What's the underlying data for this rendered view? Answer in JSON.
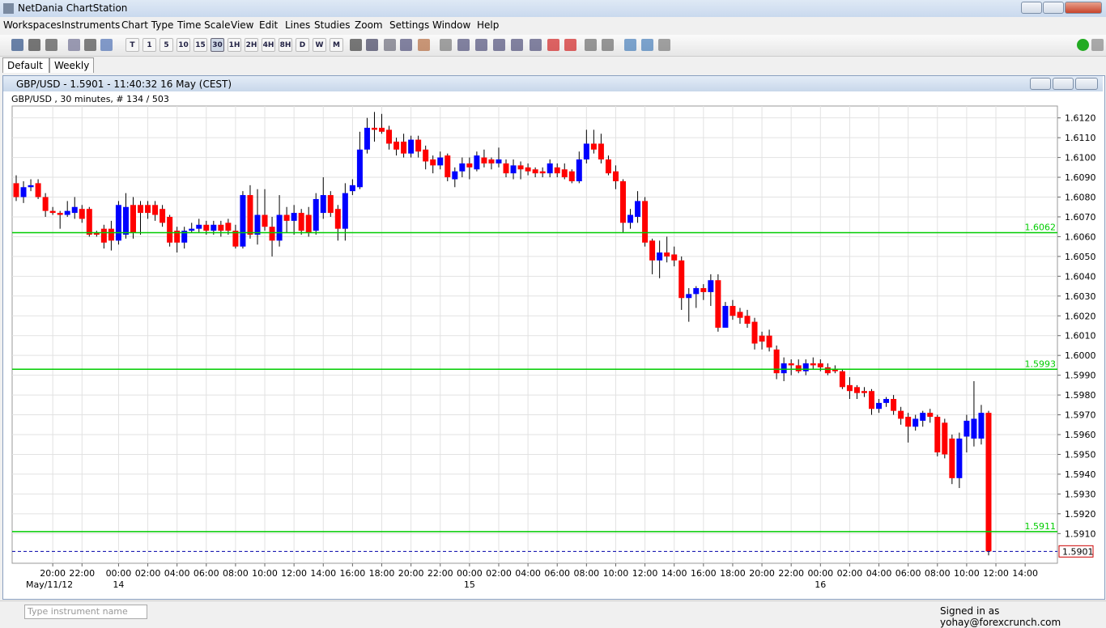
{
  "window": {
    "title": "NetDania ChartStation"
  },
  "menu": [
    "Workspaces",
    "Instruments",
    "Chart Type",
    "Time Scale",
    "View",
    "Edit",
    "Lines",
    "Studies",
    "Zoom",
    "Settings",
    "Window",
    "Help"
  ],
  "toolbar": {
    "timescales": [
      "T",
      "1",
      "5",
      "10",
      "15",
      "30",
      "1H",
      "2H",
      "4H",
      "8H",
      "D",
      "W",
      "M"
    ],
    "active": "30"
  },
  "tabs": [
    "Default",
    "Weekly"
  ],
  "chart_window": {
    "title": "GBP/USD - 1.5901 - 11:40:32  16 May (CEST)",
    "info": "GBP/USD , 30 minutes, # 134 / 503"
  },
  "chart": {
    "type": "candlestick",
    "up_color": "#0000ff",
    "down_color": "#ff0000",
    "grid": true,
    "ohlc": [
      [
        1.6087,
        1.6091,
        1.6078,
        1.608
      ],
      [
        1.608,
        1.6088,
        1.6077,
        1.6085
      ],
      [
        1.6085,
        1.6089,
        1.6083,
        1.6086
      ],
      [
        1.6087,
        1.6089,
        1.6079,
        1.608
      ],
      [
        1.608,
        1.6082,
        1.607,
        1.6073
      ],
      [
        1.6073,
        1.6075,
        1.6071,
        1.6072
      ],
      [
        1.6072,
        1.6073,
        1.6064,
        1.6071
      ],
      [
        1.6071,
        1.6078,
        1.607,
        1.6073
      ],
      [
        1.6072,
        1.608,
        1.6069,
        1.6075
      ],
      [
        1.6074,
        1.6076,
        1.6067,
        1.6069
      ],
      [
        1.6074,
        1.6075,
        1.606,
        1.6061
      ],
      [
        1.6062,
        1.6063,
        1.606,
        1.6061
      ],
      [
        1.6064,
        1.6066,
        1.6054,
        1.6057
      ],
      [
        1.6064,
        1.6068,
        1.6053,
        1.6058
      ],
      [
        1.6058,
        1.6078,
        1.6056,
        1.6076
      ],
      [
        1.6061,
        1.6082,
        1.6059,
        1.6075
      ],
      [
        1.6076,
        1.608,
        1.6059,
        1.6062
      ],
      [
        1.6076,
        1.6078,
        1.6061,
        1.6072
      ],
      [
        1.6076,
        1.6078,
        1.6069,
        1.6072
      ],
      [
        1.6076,
        1.6078,
        1.6068,
        1.6071
      ],
      [
        1.6074,
        1.6076,
        1.6065,
        1.6067
      ],
      [
        1.607,
        1.6071,
        1.6055,
        1.6057
      ],
      [
        1.6063,
        1.6065,
        1.6052,
        1.6057
      ],
      [
        1.6057,
        1.6065,
        1.6054,
        1.6063
      ],
      [
        1.6063,
        1.6067,
        1.6062,
        1.6064
      ],
      [
        1.6064,
        1.6069,
        1.6062,
        1.6066
      ],
      [
        1.6066,
        1.6068,
        1.6061,
        1.6063
      ],
      [
        1.6063,
        1.6068,
        1.6061,
        1.6066
      ],
      [
        1.6066,
        1.6068,
        1.606,
        1.6063
      ],
      [
        1.6067,
        1.6069,
        1.6061,
        1.6063
      ],
      [
        1.6063,
        1.6066,
        1.6054,
        1.6055
      ],
      [
        1.6055,
        1.6083,
        1.6054,
        1.6081
      ],
      [
        1.6081,
        1.6086,
        1.6059,
        1.6061
      ],
      [
        1.6061,
        1.6084,
        1.6056,
        1.6071
      ],
      [
        1.6071,
        1.6084,
        1.6063,
        1.6065
      ],
      [
        1.6065,
        1.607,
        1.605,
        1.6058
      ],
      [
        1.6058,
        1.6081,
        1.6055,
        1.6071
      ],
      [
        1.6071,
        1.6075,
        1.6062,
        1.6068
      ],
      [
        1.6068,
        1.6076,
        1.6061,
        1.6072
      ],
      [
        1.6072,
        1.6074,
        1.6061,
        1.6063
      ],
      [
        1.6071,
        1.6075,
        1.606,
        1.6062
      ],
      [
        1.6063,
        1.6082,
        1.6061,
        1.6079
      ],
      [
        1.6072,
        1.609,
        1.6069,
        1.6081
      ],
      [
        1.6081,
        1.6083,
        1.607,
        1.6072
      ],
      [
        1.6074,
        1.6076,
        1.6058,
        1.6064
      ],
      [
        1.6064,
        1.6087,
        1.6058,
        1.6082
      ],
      [
        1.6083,
        1.6089,
        1.6081,
        1.6086
      ],
      [
        1.6085,
        1.6113,
        1.6084,
        1.6104
      ],
      [
        1.6104,
        1.612,
        1.6102,
        1.6115
      ],
      [
        1.6115,
        1.6123,
        1.6108,
        1.6114
      ],
      [
        1.6115,
        1.6122,
        1.6112,
        1.6113
      ],
      [
        1.6114,
        1.6116,
        1.6104,
        1.6107
      ],
      [
        1.6108,
        1.611,
        1.6101,
        1.6104
      ],
      [
        1.6108,
        1.6112,
        1.61,
        1.6102
      ],
      [
        1.6102,
        1.6111,
        1.61,
        1.6109
      ],
      [
        1.6109,
        1.6111,
        1.61,
        1.6103
      ],
      [
        1.6104,
        1.6106,
        1.6094,
        1.6098
      ],
      [
        1.6099,
        1.6101,
        1.6092,
        1.6096
      ],
      [
        1.6096,
        1.6103,
        1.6094,
        1.61
      ],
      [
        1.6101,
        1.6102,
        1.6088,
        1.609
      ],
      [
        1.6089,
        1.6095,
        1.6085,
        1.6093
      ],
      [
        1.6093,
        1.61,
        1.609,
        1.6097
      ],
      [
        1.6097,
        1.61,
        1.6089,
        1.6095
      ],
      [
        1.6094,
        1.6103,
        1.6093,
        1.6101
      ],
      [
        1.61,
        1.6104,
        1.6095,
        1.6097
      ],
      [
        1.6099,
        1.61,
        1.6094,
        1.6097
      ],
      [
        1.6097,
        1.6105,
        1.6095,
        1.6099
      ],
      [
        1.6097,
        1.6099,
        1.609,
        1.6092
      ],
      [
        1.6092,
        1.6099,
        1.6089,
        1.6096
      ],
      [
        1.6096,
        1.6098,
        1.6089,
        1.6094
      ],
      [
        1.6095,
        1.6097,
        1.6091,
        1.6093
      ],
      [
        1.6094,
        1.6095,
        1.609,
        1.6092
      ],
      [
        1.6093,
        1.6095,
        1.609,
        1.6092
      ],
      [
        1.6092,
        1.6099,
        1.609,
        1.6097
      ],
      [
        1.6095,
        1.6097,
        1.609,
        1.6092
      ],
      [
        1.6094,
        1.6097,
        1.6089,
        1.609
      ],
      [
        1.6093,
        1.6094,
        1.6087,
        1.6088
      ],
      [
        1.6088,
        1.6103,
        1.6087,
        1.6099
      ],
      [
        1.6099,
        1.6114,
        1.6097,
        1.6107
      ],
      [
        1.6107,
        1.6114,
        1.6102,
        1.6104
      ],
      [
        1.6107,
        1.6112,
        1.6097,
        1.6099
      ],
      [
        1.6099,
        1.6101,
        1.6091,
        1.6092
      ],
      [
        1.6093,
        1.6096,
        1.6084,
        1.6088
      ],
      [
        1.6088,
        1.6089,
        1.6062,
        1.6067
      ],
      [
        1.6067,
        1.6074,
        1.6064,
        1.6071
      ],
      [
        1.607,
        1.6083,
        1.6067,
        1.6078
      ],
      [
        1.6078,
        1.608,
        1.6055,
        1.6057
      ],
      [
        1.6058,
        1.6059,
        1.6041,
        1.6048
      ],
      [
        1.6048,
        1.6058,
        1.6039,
        1.6052
      ],
      [
        1.6052,
        1.606,
        1.6047,
        1.605
      ],
      [
        1.6051,
        1.6055,
        1.6045,
        1.6048
      ],
      [
        1.6048,
        1.605,
        1.6023,
        1.6029
      ],
      [
        1.6029,
        1.6034,
        1.6017,
        1.6031
      ],
      [
        1.6031,
        1.6035,
        1.6024,
        1.6034
      ],
      [
        1.6034,
        1.6036,
        1.6028,
        1.6032
      ],
      [
        1.6032,
        1.6041,
        1.6025,
        1.6038
      ],
      [
        1.6038,
        1.6041,
        1.6012,
        1.6014
      ],
      [
        1.6014,
        1.6027,
        1.6016,
        1.6025
      ],
      [
        1.6025,
        1.6028,
        1.6018,
        1.602
      ],
      [
        1.6022,
        1.6024,
        1.6016,
        1.6019
      ],
      [
        1.602,
        1.6023,
        1.6014,
        1.6016
      ],
      [
        1.6017,
        1.6019,
        1.6003,
        1.6006
      ],
      [
        1.601,
        1.6012,
        1.6003,
        1.6007
      ],
      [
        1.601,
        1.6013,
        1.6002,
        1.6004
      ],
      [
        1.6003,
        1.6005,
        1.5988,
        1.5991
      ],
      [
        1.5991,
        1.5999,
        1.5987,
        1.5996
      ],
      [
        1.5996,
        1.5998,
        1.599,
        1.5995
      ],
      [
        1.5995,
        1.5998,
        1.5991,
        1.5992
      ],
      [
        1.5992,
        1.5998,
        1.599,
        1.5996
      ],
      [
        1.5996,
        1.5999,
        1.5993,
        1.5995
      ],
      [
        1.5996,
        1.5998,
        1.5992,
        1.5994
      ],
      [
        1.5994,
        1.5996,
        1.599,
        1.5991
      ],
      [
        1.5993,
        1.5995,
        1.5991,
        1.5992
      ],
      [
        1.5992,
        1.5993,
        1.5983,
        1.5984
      ],
      [
        1.5985,
        1.5989,
        1.5978,
        1.5982
      ],
      [
        1.5984,
        1.5985,
        1.5978,
        1.5981
      ],
      [
        1.5982,
        1.5984,
        1.5979,
        1.5981
      ],
      [
        1.5982,
        1.5983,
        1.597,
        1.5973
      ],
      [
        1.5973,
        1.5978,
        1.5971,
        1.5976
      ],
      [
        1.5976,
        1.5979,
        1.5974,
        1.5978
      ],
      [
        1.5978,
        1.598,
        1.597,
        1.5972
      ],
      [
        1.5972,
        1.5974,
        1.5965,
        1.5968
      ],
      [
        1.5969,
        1.5971,
        1.5956,
        1.5964
      ],
      [
        1.5964,
        1.597,
        1.5962,
        1.5968
      ],
      [
        1.5967,
        1.5972,
        1.5964,
        1.5971
      ],
      [
        1.5971,
        1.5973,
        1.5966,
        1.5969
      ],
      [
        1.5969,
        1.597,
        1.5949,
        1.5951
      ],
      [
        1.5966,
        1.5968,
        1.5948,
        1.595
      ],
      [
        1.5958,
        1.596,
        1.5935,
        1.5938
      ],
      [
        1.5938,
        1.5961,
        1.5933,
        1.5958
      ],
      [
        1.5959,
        1.597,
        1.5951,
        1.5967
      ],
      [
        1.5958,
        1.5987,
        1.5954,
        1.5968
      ],
      [
        1.5958,
        1.5975,
        1.5955,
        1.5971
      ],
      [
        1.5971,
        1.5972,
        1.5899,
        1.5901
      ]
    ],
    "ylim": [
      1.5895,
      1.6126
    ],
    "yticks": [
      {
        "value": 1.591,
        "label": "1.5910"
      },
      {
        "value": 1.592,
        "label": "1.5920"
      },
      {
        "value": 1.593,
        "label": "1.5930"
      },
      {
        "value": 1.594,
        "label": "1.5940"
      },
      {
        "value": 1.595,
        "label": "1.5950"
      },
      {
        "value": 1.596,
        "label": "1.5960"
      },
      {
        "value": 1.597,
        "label": "1.5970"
      },
      {
        "value": 1.598,
        "label": "1.5980"
      },
      {
        "value": 1.599,
        "label": "1.5990"
      },
      {
        "value": 1.6,
        "label": "1.6000"
      },
      {
        "value": 1.601,
        "label": "1.6010"
      },
      {
        "value": 1.602,
        "label": "1.6020"
      },
      {
        "value": 1.603,
        "label": "1.6030"
      },
      {
        "value": 1.604,
        "label": "1.6040"
      },
      {
        "value": 1.605,
        "label": "1.6050"
      },
      {
        "value": 1.606,
        "label": "1.6060"
      },
      {
        "value": 1.607,
        "label": "1.6070"
      },
      {
        "value": 1.608,
        "label": "1.6080"
      },
      {
        "value": 1.609,
        "label": "1.6090"
      },
      {
        "value": 1.61,
        "label": "1.6100"
      },
      {
        "value": 1.611,
        "label": "1.6110"
      },
      {
        "value": 1.612,
        "label": "1.6120"
      }
    ],
    "xticks": [
      {
        "value": 5,
        "label": "20:00"
      },
      {
        "value": 9,
        "label": "22:00"
      },
      {
        "value": 14,
        "label": "00:00"
      },
      {
        "value": 18,
        "label": "02:00"
      },
      {
        "value": 22,
        "label": "04:00"
      },
      {
        "value": 26,
        "label": "06:00"
      },
      {
        "value": 30,
        "label": "08:00"
      },
      {
        "value": 34,
        "label": "10:00"
      },
      {
        "value": 38,
        "label": "12:00"
      },
      {
        "value": 42,
        "label": "14:00"
      },
      {
        "value": 46,
        "label": "16:00"
      },
      {
        "value": 50,
        "label": "18:00"
      },
      {
        "value": 54,
        "label": "20:00"
      },
      {
        "value": 58,
        "label": "22:00"
      },
      {
        "value": 62,
        "label": "00:00"
      },
      {
        "value": 66,
        "label": "02:00"
      },
      {
        "value": 70,
        "label": "04:00"
      },
      {
        "value": 74,
        "label": "06:00"
      },
      {
        "value": 78,
        "label": "08:00"
      },
      {
        "value": 82,
        "label": "10:00"
      },
      {
        "value": 86,
        "label": "12:00"
      },
      {
        "value": 90,
        "label": "14:00"
      },
      {
        "value": 94,
        "label": "16:00"
      },
      {
        "value": 98,
        "label": "18:00"
      },
      {
        "value": 102,
        "label": "20:00"
      },
      {
        "value": 106,
        "label": "22:00"
      },
      {
        "value": 110,
        "label": "00:00"
      },
      {
        "value": 114,
        "label": "02:00"
      },
      {
        "value": 118,
        "label": "04:00"
      },
      {
        "value": 122,
        "label": "06:00"
      },
      {
        "value": 126,
        "label": "08:00"
      },
      {
        "value": 130,
        "label": "10:00"
      },
      {
        "value": 134,
        "label": "12:00"
      },
      {
        "value": 138,
        "label": "14:00"
      }
    ],
    "date_ticks": [
      {
        "value": 5,
        "label": "May/11/12"
      },
      {
        "value": 14,
        "label": "14"
      },
      {
        "value": 62,
        "label": "15"
      },
      {
        "value": 110,
        "label": "16"
      }
    ],
    "levels": [
      1.6062,
      1.5993,
      1.5911
    ],
    "level_color": "#00cc00",
    "last": 1.5901,
    "last_color": "#0000aa"
  },
  "status": {
    "search_placeholder": "Type instrument name",
    "signed_in": "Signed in as yohay@forexcrunch.com"
  }
}
